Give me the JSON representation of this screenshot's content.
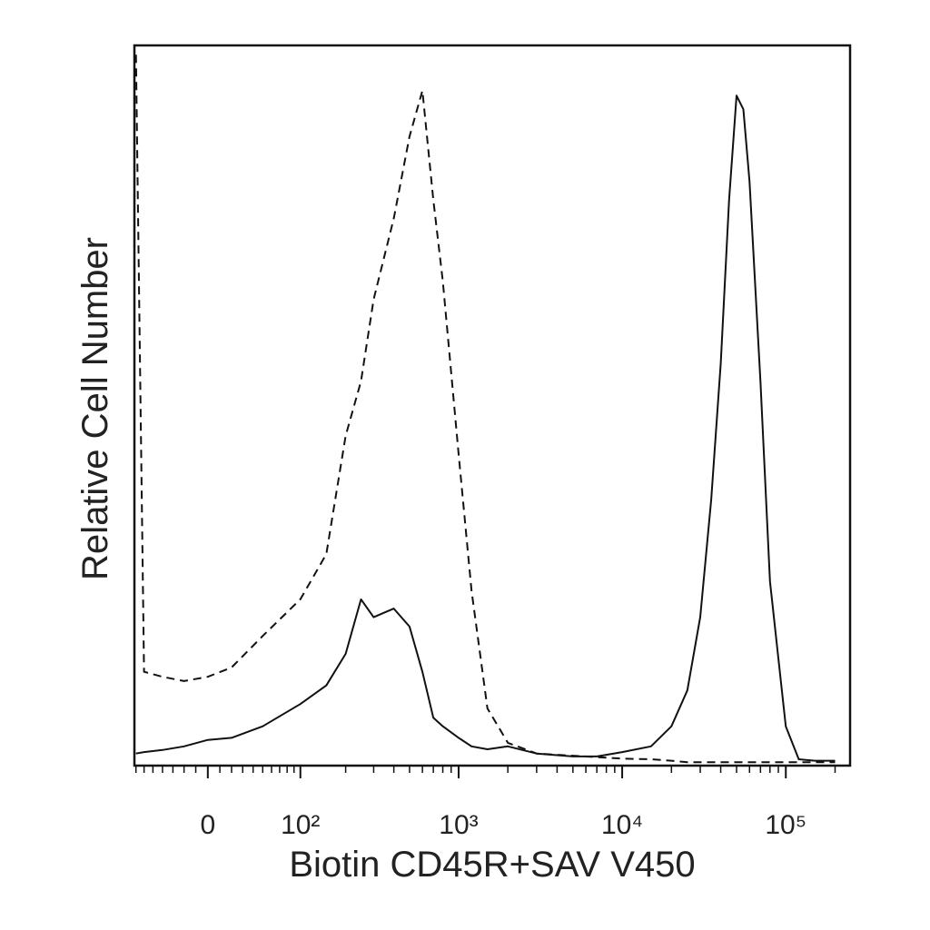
{
  "chart_data": {
    "type": "line",
    "x_label": "Biotin CD45R+SAV V450",
    "y_label": "Relative Cell Number",
    "xscale": "logicle",
    "xlim": [
      -72,
      247000
    ],
    "ylim": [
      0,
      100
    ],
    "xticks": [
      0,
      {
        "value": 100,
        "label": "10²"
      },
      {
        "value": 1000,
        "label": "10³"
      },
      {
        "value": 10000,
        "label": "10⁴"
      },
      {
        "value": 100000,
        "label": "10⁵"
      }
    ],
    "xminorticks": [
      -70,
      -60,
      -50,
      -40,
      -30,
      -20,
      -10,
      10,
      20,
      30,
      40,
      50,
      60,
      70,
      80,
      90,
      200,
      300,
      400,
      500,
      600,
      700,
      800,
      900,
      2000,
      3000,
      4000,
      5000,
      6000,
      7000,
      8000,
      9000,
      20000,
      30000,
      40000,
      50000,
      60000,
      70000,
      80000,
      90000,
      200000
    ],
    "x": [
      -70,
      -60,
      -40,
      -20,
      0,
      20,
      50,
      100,
      150,
      200,
      250,
      300,
      400,
      500,
      600,
      700,
      800,
      1000,
      1200,
      1500,
      2000,
      3000,
      5000,
      7000,
      10000,
      15000,
      20000,
      25000,
      30000,
      35000,
      40000,
      45000,
      50000,
      55000,
      60000,
      70000,
      80000,
      100000,
      120000,
      150000,
      200000
    ],
    "series": [
      {
        "color": "#111111",
        "line_style": "solid",
        "values": [
          1.3,
          1.5,
          1.8,
          2.3,
          3.2,
          3.5,
          5.1,
          8.2,
          10.8,
          15.2,
          22.8,
          20.3,
          21.5,
          19,
          12.7,
          6.3,
          5.1,
          3.5,
          2.3,
          1.9,
          2.3,
          1.3,
          0.9,
          0.9,
          1.5,
          2.3,
          5.1,
          10.1,
          20.3,
          36.7,
          55.7,
          78.5,
          93,
          91.1,
          81,
          53.2,
          25.3,
          5.1,
          0.5,
          0.3,
          0.3
        ]
      },
      {
        "color": "#111111",
        "line_style": "dashed",
        "values": [
          98.7,
          12.7,
          12,
          11.4,
          12,
          13.3,
          17.7,
          22.8,
          29.1,
          45.6,
          53.2,
          64.6,
          75.9,
          87.3,
          93.7,
          78.5,
          67.1,
          43,
          24,
          7.6,
          2.8,
          1.3,
          1,
          0.8,
          0.6,
          0.5,
          0.3,
          0.1,
          0.1,
          0.1,
          0.1,
          0.1,
          0.1,
          0.1,
          0.1,
          0.1,
          0.1,
          0.1,
          0.1,
          0.1,
          0.1
        ]
      }
    ]
  }
}
